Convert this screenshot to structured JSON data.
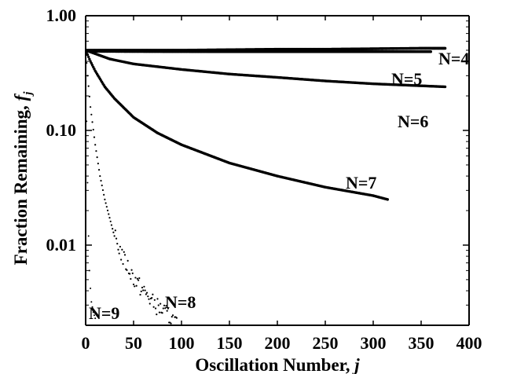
{
  "chart_data": {
    "type": "scatter",
    "xlabel": "Oscillation Number, j",
    "xlabel_main": "Oscillation Number, ",
    "xlabel_var": "j",
    "ylabel": "Fraction Remaining, f_j",
    "ylabel_main": "Fraction Remaining, ",
    "ylabel_var": "f",
    "ylabel_sub": "j",
    "x_scale": "linear",
    "y_scale": "log",
    "xlim": [
      0,
      400
    ],
    "ylim": [
      0.002,
      1.0
    ],
    "x_ticks": [
      0,
      50,
      100,
      150,
      200,
      250,
      300,
      350,
      400
    ],
    "x_tick_labels": [
      "0",
      "50",
      "100",
      "150",
      "200",
      "250",
      "300",
      "350",
      "400"
    ],
    "y_ticks": [
      0.01,
      0.1,
      1.0
    ],
    "y_tick_labels": [
      "0.01",
      "0.10",
      "1.00"
    ],
    "grid": false,
    "legend": "none",
    "series": [
      {
        "name": "N=4",
        "x": [
          0,
          50,
          100,
          150,
          200,
          250,
          300,
          350,
          375
        ],
        "y": [
          0.5,
          0.5,
          0.5,
          0.505,
          0.51,
          0.51,
          0.515,
          0.52,
          0.52
        ]
      },
      {
        "name": "N=5",
        "x": [
          0,
          50,
          100,
          150,
          200,
          250,
          300,
          350,
          360
        ],
        "y": [
          0.49,
          0.488,
          0.487,
          0.486,
          0.486,
          0.486,
          0.486,
          0.486,
          0.486
        ]
      },
      {
        "name": "N=6",
        "x": [
          0,
          25,
          50,
          100,
          150,
          200,
          250,
          300,
          350,
          375
        ],
        "y": [
          0.5,
          0.42,
          0.38,
          0.34,
          0.31,
          0.29,
          0.27,
          0.255,
          0.245,
          0.24
        ]
      },
      {
        "name": "N=7",
        "x": [
          0,
          5,
          10,
          20,
          30,
          50,
          75,
          100,
          150,
          200,
          250,
          300,
          315
        ],
        "y": [
          0.5,
          0.4,
          0.33,
          0.24,
          0.19,
          0.13,
          0.095,
          0.075,
          0.052,
          0.04,
          0.032,
          0.027,
          0.025
        ]
      },
      {
        "name": "N=8",
        "x": [
          0,
          2,
          5,
          10,
          15,
          20,
          30,
          40,
          50,
          60,
          70,
          80,
          90,
          95
        ],
        "y": [
          0.5,
          0.3,
          0.16,
          0.075,
          0.04,
          0.025,
          0.012,
          0.0075,
          0.0052,
          0.004,
          0.0032,
          0.0027,
          0.0023,
          0.0021
        ]
      },
      {
        "name": "N=9",
        "x": [
          0,
          1,
          2,
          3,
          4,
          5,
          6,
          8,
          10
        ],
        "y": [
          0.5,
          0.12,
          0.035,
          0.012,
          0.006,
          0.0042,
          0.0032,
          0.0026,
          0.0023
        ]
      }
    ]
  }
}
